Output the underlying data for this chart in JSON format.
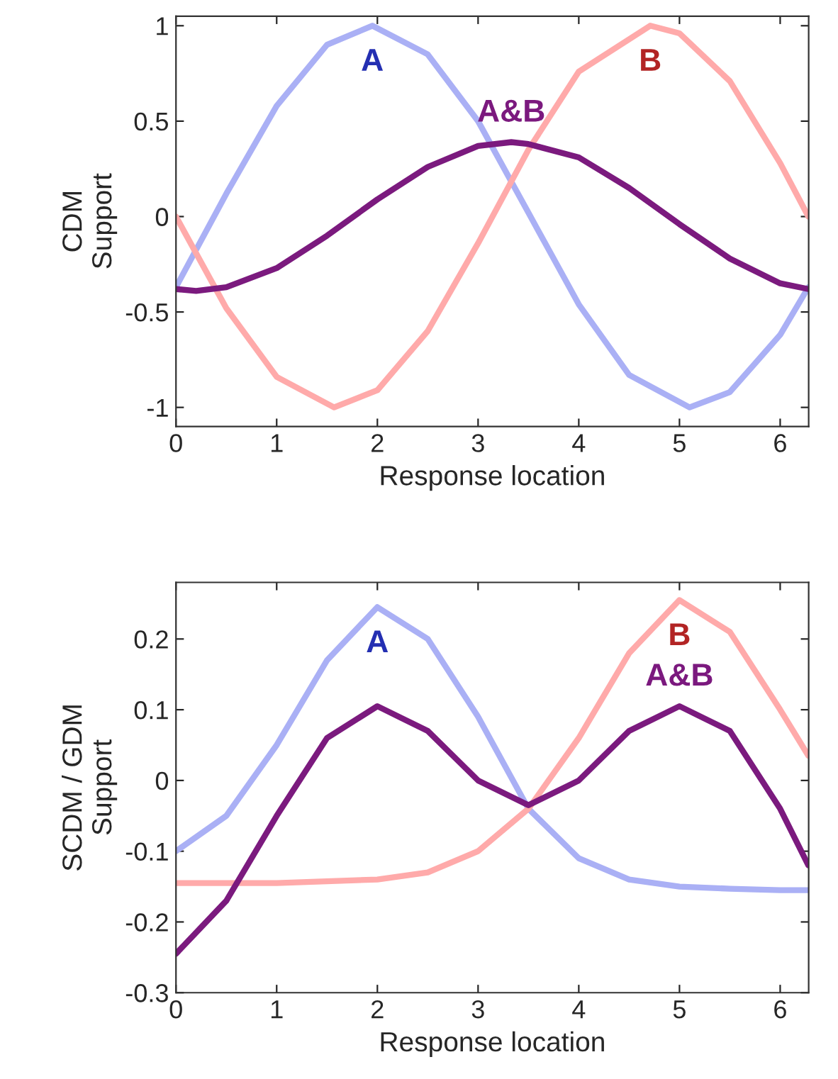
{
  "chart_data": [
    {
      "type": "line",
      "xlabel": "Response location",
      "ylabel": "CDM\nSupport",
      "xlim": [
        0,
        6.283
      ],
      "ylim": [
        -1.1,
        1.05
      ],
      "xticks": [
        0,
        1,
        2,
        3,
        4,
        5,
        6
      ],
      "yticks": [
        -1,
        -0.5,
        0,
        0.5,
        1
      ],
      "grid": false,
      "legend": false,
      "marker": "none",
      "line_style": "solid",
      "series": [
        {
          "name": "A",
          "color": "#aab0f5",
          "x": [
            0,
            0.5,
            1,
            1.5,
            1.95,
            2.5,
            3,
            3.5,
            4,
            4.5,
            5.1,
            5.5,
            6,
            6.28
          ],
          "values": [
            -0.37,
            0.12,
            0.58,
            0.9,
            1.0,
            0.85,
            0.5,
            0.02,
            -0.46,
            -0.83,
            -1.0,
            -0.92,
            -0.62,
            -0.37
          ]
        },
        {
          "name": "B",
          "color": "#ffaaaa",
          "x": [
            0,
            0.5,
            1,
            1.57,
            2,
            2.5,
            3,
            3.5,
            4,
            4.71,
            5,
            5.5,
            6,
            6.28
          ],
          "values": [
            0,
            -0.48,
            -0.84,
            -1.0,
            -0.91,
            -0.6,
            -0.14,
            0.35,
            0.76,
            1.0,
            0.96,
            0.71,
            0.28,
            0
          ]
        },
        {
          "name": "A&B",
          "color": "#7b1a7e",
          "x": [
            0,
            0.2,
            0.5,
            1,
            1.5,
            2,
            2.5,
            3,
            3.33,
            3.5,
            4,
            4.5,
            5,
            5.5,
            6,
            6.28
          ],
          "values": [
            -0.38,
            -0.39,
            -0.37,
            -0.27,
            -0.1,
            0.09,
            0.26,
            0.37,
            0.39,
            0.38,
            0.31,
            0.15,
            -0.04,
            -0.22,
            -0.35,
            -0.38
          ]
        }
      ]
    },
    {
      "type": "line",
      "xlabel": "Response location",
      "ylabel": "SCDM / GDM\nSupport",
      "xlim": [
        0,
        6.283
      ],
      "ylim": [
        -0.3,
        0.28
      ],
      "xticks": [
        0,
        1,
        2,
        3,
        4,
        5,
        6
      ],
      "yticks": [
        -0.3,
        -0.2,
        -0.1,
        0,
        0.1,
        0.2
      ],
      "grid": false,
      "legend": false,
      "marker": "none",
      "line_style": "solid",
      "series": [
        {
          "name": "A",
          "color": "#aab0f5",
          "x": [
            0,
            0.5,
            1,
            1.5,
            2,
            2.5,
            3,
            3.5,
            4,
            4.5,
            5,
            5.5,
            6,
            6.28
          ],
          "values": [
            -0.1,
            -0.05,
            0.05,
            0.17,
            0.245,
            0.2,
            0.09,
            -0.04,
            -0.11,
            -0.14,
            -0.15,
            -0.153,
            -0.155,
            -0.155
          ]
        },
        {
          "name": "B",
          "color": "#ffaaaa",
          "x": [
            0,
            1,
            2,
            2.5,
            3,
            3.5,
            4,
            4.5,
            5,
            5.5,
            6,
            6.28
          ],
          "values": [
            -0.145,
            -0.145,
            -0.14,
            -0.13,
            -0.1,
            -0.04,
            0.06,
            0.18,
            0.255,
            0.21,
            0.1,
            0.035
          ]
        },
        {
          "name": "A&B",
          "color": "#7b1a7e",
          "x": [
            0,
            0.5,
            1,
            1.5,
            2,
            2.5,
            3,
            3.5,
            4,
            4.5,
            5,
            5.5,
            6,
            6.28
          ],
          "values": [
            -0.245,
            -0.17,
            -0.05,
            0.06,
            0.105,
            0.07,
            0.0,
            -0.035,
            0.0,
            0.07,
            0.105,
            0.07,
            -0.04,
            -0.12
          ]
        }
      ]
    }
  ]
}
